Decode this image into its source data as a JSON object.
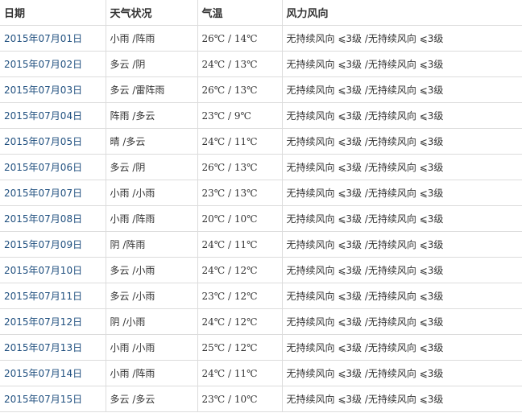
{
  "headers": [
    "日期",
    "天气状况",
    "气温",
    "风力风向"
  ],
  "colors": {
    "date_link": "#1f4f7f",
    "text": "#333333",
    "border": "#dcdcdc"
  },
  "rows": [
    {
      "date": "2015年07月01日",
      "weather": "小雨 /阵雨",
      "temp": "26℃ / 14℃",
      "wind": "无持续风向 ⩽3级 /无持续风向 ⩽3级"
    },
    {
      "date": "2015年07月02日",
      "weather": "多云 /阴",
      "temp": "24℃ / 13℃",
      "wind": "无持续风向 ⩽3级 /无持续风向 ⩽3级"
    },
    {
      "date": "2015年07月03日",
      "weather": "多云 /雷阵雨",
      "temp": "26℃ / 13℃",
      "wind": "无持续风向 ⩽3级 /无持续风向 ⩽3级"
    },
    {
      "date": "2015年07月04日",
      "weather": "阵雨 /多云",
      "temp": "23℃ / 9℃",
      "wind": "无持续风向 ⩽3级 /无持续风向 ⩽3级"
    },
    {
      "date": "2015年07月05日",
      "weather": "晴 /多云",
      "temp": "24℃ / 11℃",
      "wind": "无持续风向 ⩽3级 /无持续风向 ⩽3级"
    },
    {
      "date": "2015年07月06日",
      "weather": "多云 /阴",
      "temp": "26℃ / 13℃",
      "wind": "无持续风向 ⩽3级 /无持续风向 ⩽3级"
    },
    {
      "date": "2015年07月07日",
      "weather": "小雨 /小雨",
      "temp": "23℃ / 13℃",
      "wind": "无持续风向 ⩽3级 /无持续风向 ⩽3级"
    },
    {
      "date": "2015年07月08日",
      "weather": "小雨 /阵雨",
      "temp": "20℃ / 10℃",
      "wind": "无持续风向 ⩽3级 /无持续风向 ⩽3级"
    },
    {
      "date": "2015年07月09日",
      "weather": "阴 /阵雨",
      "temp": "24℃ / 11℃",
      "wind": "无持续风向 ⩽3级 /无持续风向 ⩽3级"
    },
    {
      "date": "2015年07月10日",
      "weather": "多云 /小雨",
      "temp": "24℃ / 12℃",
      "wind": "无持续风向 ⩽3级 /无持续风向 ⩽3级"
    },
    {
      "date": "2015年07月11日",
      "weather": "多云 /小雨",
      "temp": "23℃ / 12℃",
      "wind": "无持续风向 ⩽3级 /无持续风向 ⩽3级"
    },
    {
      "date": "2015年07月12日",
      "weather": "阴 /小雨",
      "temp": "24℃ / 12℃",
      "wind": "无持续风向 ⩽3级 /无持续风向 ⩽3级"
    },
    {
      "date": "2015年07月13日",
      "weather": "小雨 /小雨",
      "temp": "25℃ / 12℃",
      "wind": "无持续风向 ⩽3级 /无持续风向 ⩽3级"
    },
    {
      "date": "2015年07月14日",
      "weather": "小雨 /阵雨",
      "temp": "24℃ / 11℃",
      "wind": "无持续风向 ⩽3级 /无持续风向 ⩽3级"
    },
    {
      "date": "2015年07月15日",
      "weather": "多云 /多云",
      "temp": "23℃ / 10℃",
      "wind": "无持续风向 ⩽3级 /无持续风向 ⩽3级"
    }
  ]
}
